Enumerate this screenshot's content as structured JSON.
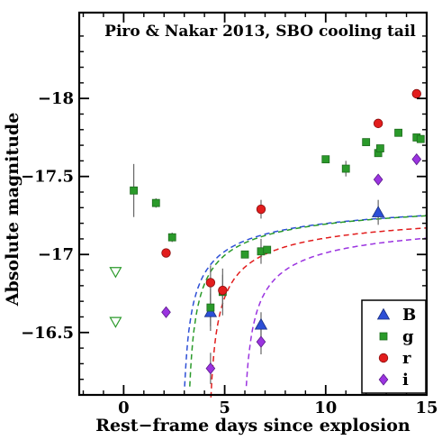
{
  "chart_data": {
    "type": "scatter",
    "title": "Piro & Nakar 2013, SBO cooling tail",
    "xlabel": "Rest−frame days since explosion",
    "ylabel": "Absolute magnitude",
    "xlim": [
      -2.2,
      15
    ],
    "ylim": [
      -16.1,
      -18.55
    ],
    "y_inverted": true,
    "grid": false,
    "legend_position": "bottom-right",
    "x_ticks": [
      {
        "value": 0,
        "label": "0"
      },
      {
        "value": 5,
        "label": "5"
      },
      {
        "value": 10,
        "label": "10"
      },
      {
        "value": 15,
        "label": "15"
      }
    ],
    "y_ticks": [
      {
        "value": -16.5,
        "label": "−16.5"
      },
      {
        "value": -17,
        "label": "−17"
      },
      {
        "value": -17.5,
        "label": "−17.5"
      },
      {
        "value": -18,
        "label": "−18"
      }
    ],
    "series": [
      {
        "name": "B",
        "marker": "triangle-up",
        "color": "#2d4fd6",
        "points": [
          {
            "x": 4.3,
            "y": -16.63,
            "err": 0.12
          },
          {
            "x": 6.8,
            "y": -16.55,
            "err": 0.08
          },
          {
            "x": 12.6,
            "y": -17.27,
            "err": 0.08
          }
        ]
      },
      {
        "name": "g",
        "marker": "square",
        "color": "#2a9a2a",
        "points": [
          {
            "x": 0.5,
            "y": -17.41,
            "err": 0.17
          },
          {
            "x": 1.6,
            "y": -17.33,
            "err": 0.03
          },
          {
            "x": 2.4,
            "y": -17.11,
            "err": 0.03
          },
          {
            "x": 4.3,
            "y": -16.66,
            "err": 0.12
          },
          {
            "x": 4.9,
            "y": -16.76,
            "err": 0.15
          },
          {
            "x": 6.0,
            "y": -17.0,
            "err": 0
          },
          {
            "x": 6.8,
            "y": -17.02,
            "err": 0.08
          },
          {
            "x": 7.1,
            "y": -17.03,
            "err": 0
          },
          {
            "x": 10.0,
            "y": -17.61,
            "err": 0
          },
          {
            "x": 11.0,
            "y": -17.55,
            "err": 0.05
          },
          {
            "x": 12.0,
            "y": -17.72,
            "err": 0
          },
          {
            "x": 12.6,
            "y": -17.65,
            "err": 0
          },
          {
            "x": 12.7,
            "y": -17.68,
            "err": 0
          },
          {
            "x": 13.6,
            "y": -17.78,
            "err": 0
          },
          {
            "x": 14.5,
            "y": -17.75,
            "err": 0
          },
          {
            "x": 14.7,
            "y": -17.74,
            "err": 0
          }
        ]
      },
      {
        "name": "r",
        "marker": "circle",
        "color": "#e21d1d",
        "points": [
          {
            "x": 2.1,
            "y": -17.01,
            "err": 0
          },
          {
            "x": 4.3,
            "y": -16.82,
            "err": 0.11
          },
          {
            "x": 4.9,
            "y": -16.77,
            "err": 0.1
          },
          {
            "x": 6.8,
            "y": -17.29,
            "err": 0.06
          },
          {
            "x": 12.6,
            "y": -17.84,
            "err": 0
          },
          {
            "x": 14.5,
            "y": -18.03,
            "err": 0
          }
        ]
      },
      {
        "name": "i",
        "marker": "diamond",
        "color": "#9b34e0",
        "points": [
          {
            "x": 2.1,
            "y": -16.63,
            "err": 0
          },
          {
            "x": 4.3,
            "y": -16.27,
            "err": 0.1
          },
          {
            "x": 6.8,
            "y": -16.44,
            "err": 0.08
          },
          {
            "x": 12.6,
            "y": -17.48,
            "err": 0
          },
          {
            "x": 14.5,
            "y": -17.61,
            "err": 0
          }
        ]
      },
      {
        "name": "",
        "marker": "triangle-down-open",
        "color": "#2a9a2a",
        "points": [
          {
            "x": -0.4,
            "y": -16.89,
            "err": 0
          },
          {
            "x": -0.4,
            "y": -16.57,
            "err": 0
          }
        ]
      }
    ],
    "model_curves": [
      {
        "band": "B",
        "color": "#2d4fd6",
        "t0": 2.8,
        "A": 1.32,
        "mmax": -17.42
      },
      {
        "band": "g",
        "color": "#2a9a2a",
        "t0": 3.05,
        "A": 1.32,
        "mmax": -17.42
      },
      {
        "band": "r",
        "color": "#e21d1d",
        "t0": 4.1,
        "A": 1.32,
        "mmax": -17.35
      },
      {
        "band": "i",
        "color": "#9b34e0",
        "t0": 5.8,
        "A": 1.32,
        "mmax": -17.3
      }
    ]
  }
}
